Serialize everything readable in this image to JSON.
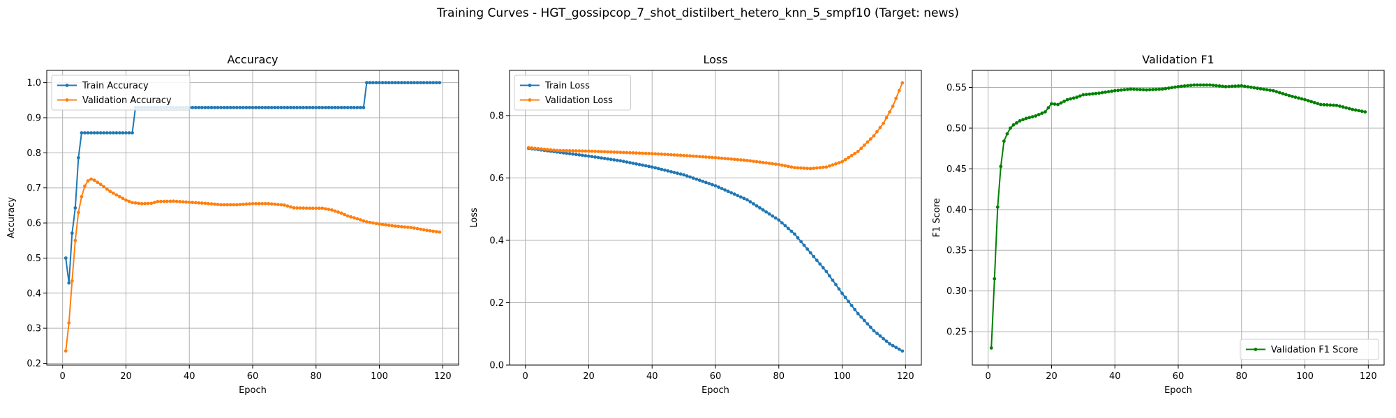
{
  "figure": {
    "suptitle": "Training Curves - HGT_gossipcop_7_shot_distilbert_hetero_knn_5_smpf10 (Target: news)"
  },
  "colors": {
    "blue": "#1f77b4",
    "orange": "#ff7f0e",
    "green": "#008000",
    "grid": "#b0b0b0"
  },
  "chart_data": [
    {
      "type": "line",
      "title": "Accuracy",
      "xlabel": "Epoch",
      "ylabel": "Accuracy",
      "xlim": [
        -5,
        125
      ],
      "ylim": [
        0.195,
        1.035
      ],
      "xticks": [
        0,
        20,
        40,
        60,
        80,
        100,
        120
      ],
      "yticks": [
        0.2,
        0.3,
        0.4,
        0.5,
        0.6,
        0.7,
        0.8,
        0.9,
        1.0
      ],
      "grid": true,
      "legend": "upper-left",
      "x_range": [
        1,
        119
      ],
      "series": [
        {
          "name": "Train Accuracy",
          "color": "#1f77b4",
          "points": [
            [
              1,
              0.5
            ],
            [
              2,
              0.429
            ],
            [
              3,
              0.571
            ],
            [
              4,
              0.643
            ],
            [
              5,
              0.786
            ],
            [
              6,
              0.857
            ],
            [
              22,
              0.857
            ],
            [
              23,
              0.929
            ],
            [
              95,
              0.929
            ],
            [
              96,
              1.0
            ],
            [
              119,
              1.0
            ]
          ]
        },
        {
          "name": "Validation Accuracy",
          "color": "#ff7f0e",
          "points": [
            [
              1,
              0.235
            ],
            [
              2,
              0.315
            ],
            [
              3,
              0.435
            ],
            [
              4,
              0.55
            ],
            [
              5,
              0.63
            ],
            [
              6,
              0.675
            ],
            [
              7,
              0.705
            ],
            [
              8,
              0.72
            ],
            [
              9,
              0.725
            ],
            [
              10,
              0.722
            ],
            [
              12,
              0.71
            ],
            [
              15,
              0.69
            ],
            [
              18,
              0.675
            ],
            [
              20,
              0.665
            ],
            [
              22,
              0.658
            ],
            [
              25,
              0.655
            ],
            [
              28,
              0.656
            ],
            [
              30,
              0.661
            ],
            [
              35,
              0.662
            ],
            [
              40,
              0.659
            ],
            [
              45,
              0.656
            ],
            [
              50,
              0.652
            ],
            [
              55,
              0.652
            ],
            [
              60,
              0.655
            ],
            [
              65,
              0.655
            ],
            [
              70,
              0.651
            ],
            [
              73,
              0.643
            ],
            [
              78,
              0.642
            ],
            [
              82,
              0.642
            ],
            [
              85,
              0.637
            ],
            [
              88,
              0.628
            ],
            [
              90,
              0.62
            ],
            [
              93,
              0.612
            ],
            [
              96,
              0.603
            ],
            [
              100,
              0.597
            ],
            [
              105,
              0.591
            ],
            [
              110,
              0.587
            ],
            [
              115,
              0.579
            ],
            [
              119,
              0.574
            ]
          ]
        }
      ]
    },
    {
      "type": "line",
      "title": "Loss",
      "xlabel": "Epoch",
      "ylabel": "Loss",
      "xlim": [
        -5,
        125
      ],
      "ylim": [
        0.0,
        0.945
      ],
      "xticks": [
        0,
        20,
        40,
        60,
        80,
        100,
        120
      ],
      "yticks": [
        0.0,
        0.2,
        0.4,
        0.6,
        0.8
      ],
      "grid": true,
      "legend": "upper-left",
      "x_range": [
        1,
        119
      ],
      "series": [
        {
          "name": "Train Loss",
          "color": "#1f77b4",
          "points": [
            [
              1,
              0.695
            ],
            [
              10,
              0.683
            ],
            [
              20,
              0.67
            ],
            [
              30,
              0.655
            ],
            [
              40,
              0.635
            ],
            [
              50,
              0.61
            ],
            [
              60,
              0.575
            ],
            [
              70,
              0.53
            ],
            [
              80,
              0.465
            ],
            [
              85,
              0.42
            ],
            [
              90,
              0.36
            ],
            [
              95,
              0.3
            ],
            [
              100,
              0.23
            ],
            [
              105,
              0.165
            ],
            [
              110,
              0.11
            ],
            [
              115,
              0.068
            ],
            [
              119,
              0.045
            ]
          ]
        },
        {
          "name": "Validation Loss",
          "color": "#ff7f0e",
          "points": [
            [
              1,
              0.697
            ],
            [
              10,
              0.688
            ],
            [
              20,
              0.686
            ],
            [
              30,
              0.682
            ],
            [
              40,
              0.678
            ],
            [
              50,
              0.672
            ],
            [
              60,
              0.665
            ],
            [
              70,
              0.656
            ],
            [
              80,
              0.643
            ],
            [
              85,
              0.633
            ],
            [
              90,
              0.63
            ],
            [
              95,
              0.635
            ],
            [
              100,
              0.652
            ],
            [
              105,
              0.685
            ],
            [
              110,
              0.735
            ],
            [
              113,
              0.775
            ],
            [
              116,
              0.83
            ],
            [
              119,
              0.905
            ]
          ]
        }
      ]
    },
    {
      "type": "line",
      "title": "Validation F1",
      "xlabel": "Epoch",
      "ylabel": "F1 Score",
      "xlim": [
        -5,
        125
      ],
      "ylim": [
        0.209,
        0.571
      ],
      "xticks": [
        0,
        20,
        40,
        60,
        80,
        100,
        120
      ],
      "yticks": [
        0.25,
        0.3,
        0.35,
        0.4,
        0.45,
        0.5,
        0.55
      ],
      "grid": true,
      "legend": "lower-right",
      "x_range": [
        1,
        119
      ],
      "series": [
        {
          "name": "Validation F1 Score",
          "color": "#008000",
          "points": [
            [
              1,
              0.23
            ],
            [
              2,
              0.315
            ],
            [
              3,
              0.403
            ],
            [
              4,
              0.453
            ],
            [
              5,
              0.484
            ],
            [
              6,
              0.493
            ],
            [
              7,
              0.5
            ],
            [
              8,
              0.504
            ],
            [
              10,
              0.509
            ],
            [
              12,
              0.512
            ],
            [
              15,
              0.515
            ],
            [
              18,
              0.52
            ],
            [
              20,
              0.53
            ],
            [
              22,
              0.529
            ],
            [
              25,
              0.535
            ],
            [
              28,
              0.538
            ],
            [
              30,
              0.541
            ],
            [
              35,
              0.543
            ],
            [
              40,
              0.546
            ],
            [
              45,
              0.548
            ],
            [
              50,
              0.547
            ],
            [
              55,
              0.548
            ],
            [
              60,
              0.551
            ],
            [
              65,
              0.553
            ],
            [
              70,
              0.553
            ],
            [
              75,
              0.551
            ],
            [
              80,
              0.552
            ],
            [
              85,
              0.549
            ],
            [
              90,
              0.546
            ],
            [
              95,
              0.54
            ],
            [
              100,
              0.535
            ],
            [
              105,
              0.529
            ],
            [
              110,
              0.528
            ],
            [
              115,
              0.523
            ],
            [
              119,
              0.52
            ]
          ]
        }
      ]
    }
  ]
}
